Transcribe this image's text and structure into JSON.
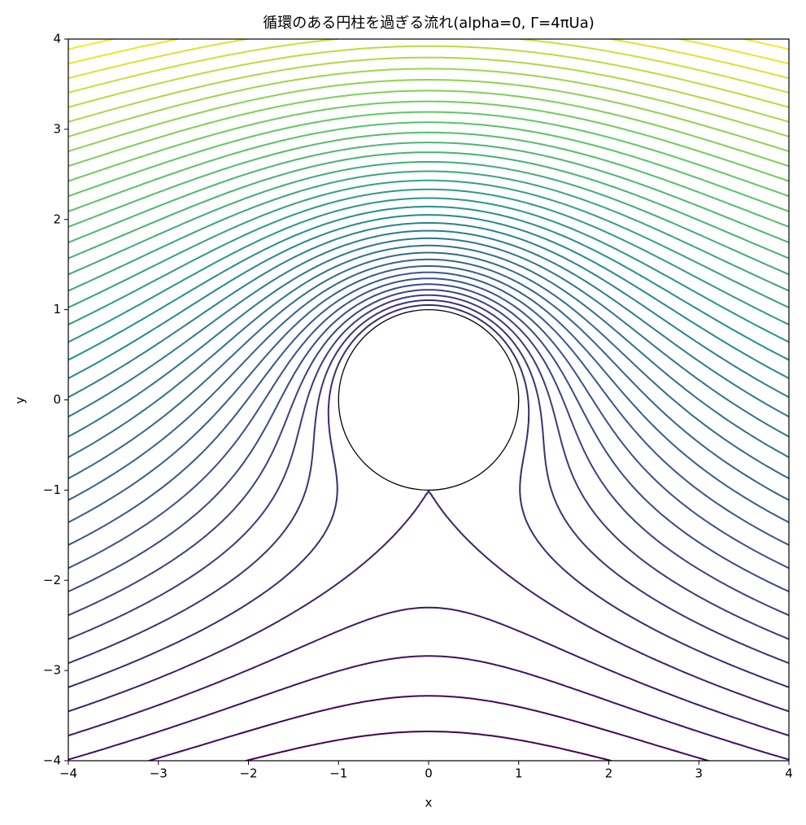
{
  "chart_data": {
    "type": "contour",
    "title": "循環のある円柱を過ぎる流れ(alpha=0, Γ=4πUa)",
    "x_label": "x",
    "y_label": "y",
    "xlim": [
      -4,
      4
    ],
    "ylim": [
      -4,
      4
    ],
    "xticks": [
      {
        "value": -4,
        "label": "−4"
      },
      {
        "value": -3,
        "label": "−3"
      },
      {
        "value": -2,
        "label": "−2"
      },
      {
        "value": -1,
        "label": "−1"
      },
      0,
      1,
      2,
      3,
      4
    ],
    "yticks": [
      {
        "value": -4,
        "label": "−4"
      },
      {
        "value": -3,
        "label": "−3"
      },
      {
        "value": -2,
        "label": "−2"
      },
      {
        "value": -1,
        "label": "−1"
      },
      0,
      1,
      2,
      3,
      4
    ],
    "cylinder_radius": 1,
    "colormap": "viridis",
    "levels": [
      -0.8,
      -0.6,
      -0.4,
      -0.2,
      0,
      0.2,
      0.4,
      0.6,
      0.8,
      1,
      1.2,
      1.4,
      1.6,
      1.8,
      2,
      2.2,
      2.4,
      2.6,
      2.8,
      3,
      3.2,
      3.4,
      3.6,
      3.8,
      4,
      4.2,
      4.4,
      4.6,
      4.8,
      5,
      5.2,
      5.4,
      5.6,
      5.8,
      6,
      6.2,
      6.4,
      6.6,
      6.8,
      7,
      7.2
    ]
  }
}
